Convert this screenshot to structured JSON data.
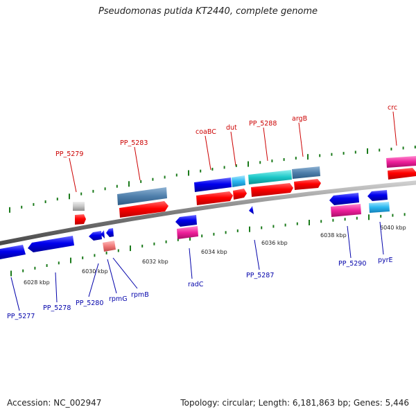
{
  "title": "Pseudomonas putida KT2440, complete genome",
  "footer": {
    "accession": "Accession: NC_002947",
    "topology": "Topology: circular; Length: 6,181,863 bp; Genes: 5,446"
  },
  "colors": {
    "plus_label": "#cc0000",
    "minus_label": "#0000aa",
    "tick": "#1a7a1a",
    "backbone": "#8a8a8a"
  },
  "kbp_labels": [
    "6028 kbp",
    "6030 kbp",
    "6032 kbp",
    "6034 kbp",
    "6036 kbp",
    "6038 kbp",
    "6040 kbp"
  ],
  "genes_plus": [
    "PP_5279",
    "PP_5283",
    "coaBC",
    "dut",
    "PP_5288",
    "argB",
    "crc"
  ],
  "genes_minus": [
    "PP_5277",
    "PP_5278",
    "PP_5280",
    "rpmG",
    "rpmB",
    "radC",
    "PP_5287",
    "PP_5290",
    "pyrE"
  ]
}
